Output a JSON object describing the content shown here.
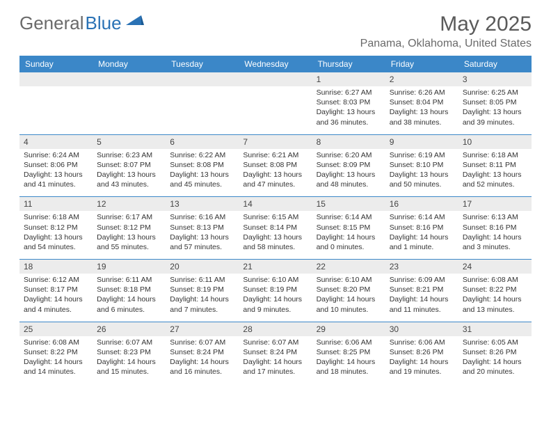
{
  "brand": {
    "part1": "General",
    "part2": "Blue"
  },
  "title": "May 2025",
  "location": "Panama, Oklahoma, United States",
  "colors": {
    "header_bg": "#3b87c8",
    "header_text": "#ffffff",
    "daynum_bg": "#ececec",
    "border": "#3b87c8",
    "text": "#333333",
    "title_color": "#5a5a5a"
  },
  "day_headers": [
    "Sunday",
    "Monday",
    "Tuesday",
    "Wednesday",
    "Thursday",
    "Friday",
    "Saturday"
  ],
  "weeks": [
    {
      "nums": [
        "",
        "",
        "",
        "",
        "1",
        "2",
        "3"
      ],
      "data": [
        null,
        null,
        null,
        null,
        {
          "sr": "6:27 AM",
          "ss": "8:03 PM",
          "dl": "13 hours and 36 minutes."
        },
        {
          "sr": "6:26 AM",
          "ss": "8:04 PM",
          "dl": "13 hours and 38 minutes."
        },
        {
          "sr": "6:25 AM",
          "ss": "8:05 PM",
          "dl": "13 hours and 39 minutes."
        }
      ]
    },
    {
      "nums": [
        "4",
        "5",
        "6",
        "7",
        "8",
        "9",
        "10"
      ],
      "data": [
        {
          "sr": "6:24 AM",
          "ss": "8:06 PM",
          "dl": "13 hours and 41 minutes."
        },
        {
          "sr": "6:23 AM",
          "ss": "8:07 PM",
          "dl": "13 hours and 43 minutes."
        },
        {
          "sr": "6:22 AM",
          "ss": "8:08 PM",
          "dl": "13 hours and 45 minutes."
        },
        {
          "sr": "6:21 AM",
          "ss": "8:08 PM",
          "dl": "13 hours and 47 minutes."
        },
        {
          "sr": "6:20 AM",
          "ss": "8:09 PM",
          "dl": "13 hours and 48 minutes."
        },
        {
          "sr": "6:19 AM",
          "ss": "8:10 PM",
          "dl": "13 hours and 50 minutes."
        },
        {
          "sr": "6:18 AM",
          "ss": "8:11 PM",
          "dl": "13 hours and 52 minutes."
        }
      ]
    },
    {
      "nums": [
        "11",
        "12",
        "13",
        "14",
        "15",
        "16",
        "17"
      ],
      "data": [
        {
          "sr": "6:18 AM",
          "ss": "8:12 PM",
          "dl": "13 hours and 54 minutes."
        },
        {
          "sr": "6:17 AM",
          "ss": "8:12 PM",
          "dl": "13 hours and 55 minutes."
        },
        {
          "sr": "6:16 AM",
          "ss": "8:13 PM",
          "dl": "13 hours and 57 minutes."
        },
        {
          "sr": "6:15 AM",
          "ss": "8:14 PM",
          "dl": "13 hours and 58 minutes."
        },
        {
          "sr": "6:14 AM",
          "ss": "8:15 PM",
          "dl": "14 hours and 0 minutes."
        },
        {
          "sr": "6:14 AM",
          "ss": "8:16 PM",
          "dl": "14 hours and 1 minute."
        },
        {
          "sr": "6:13 AM",
          "ss": "8:16 PM",
          "dl": "14 hours and 3 minutes."
        }
      ]
    },
    {
      "nums": [
        "18",
        "19",
        "20",
        "21",
        "22",
        "23",
        "24"
      ],
      "data": [
        {
          "sr": "6:12 AM",
          "ss": "8:17 PM",
          "dl": "14 hours and 4 minutes."
        },
        {
          "sr": "6:11 AM",
          "ss": "8:18 PM",
          "dl": "14 hours and 6 minutes."
        },
        {
          "sr": "6:11 AM",
          "ss": "8:19 PM",
          "dl": "14 hours and 7 minutes."
        },
        {
          "sr": "6:10 AM",
          "ss": "8:19 PM",
          "dl": "14 hours and 9 minutes."
        },
        {
          "sr": "6:10 AM",
          "ss": "8:20 PM",
          "dl": "14 hours and 10 minutes."
        },
        {
          "sr": "6:09 AM",
          "ss": "8:21 PM",
          "dl": "14 hours and 11 minutes."
        },
        {
          "sr": "6:08 AM",
          "ss": "8:22 PM",
          "dl": "14 hours and 13 minutes."
        }
      ]
    },
    {
      "nums": [
        "25",
        "26",
        "27",
        "28",
        "29",
        "30",
        "31"
      ],
      "data": [
        {
          "sr": "6:08 AM",
          "ss": "8:22 PM",
          "dl": "14 hours and 14 minutes."
        },
        {
          "sr": "6:07 AM",
          "ss": "8:23 PM",
          "dl": "14 hours and 15 minutes."
        },
        {
          "sr": "6:07 AM",
          "ss": "8:24 PM",
          "dl": "14 hours and 16 minutes."
        },
        {
          "sr": "6:07 AM",
          "ss": "8:24 PM",
          "dl": "14 hours and 17 minutes."
        },
        {
          "sr": "6:06 AM",
          "ss": "8:25 PM",
          "dl": "14 hours and 18 minutes."
        },
        {
          "sr": "6:06 AM",
          "ss": "8:26 PM",
          "dl": "14 hours and 19 minutes."
        },
        {
          "sr": "6:05 AM",
          "ss": "8:26 PM",
          "dl": "14 hours and 20 minutes."
        }
      ]
    }
  ],
  "labels": {
    "sunrise": "Sunrise:",
    "sunset": "Sunset:",
    "daylight": "Daylight:"
  }
}
